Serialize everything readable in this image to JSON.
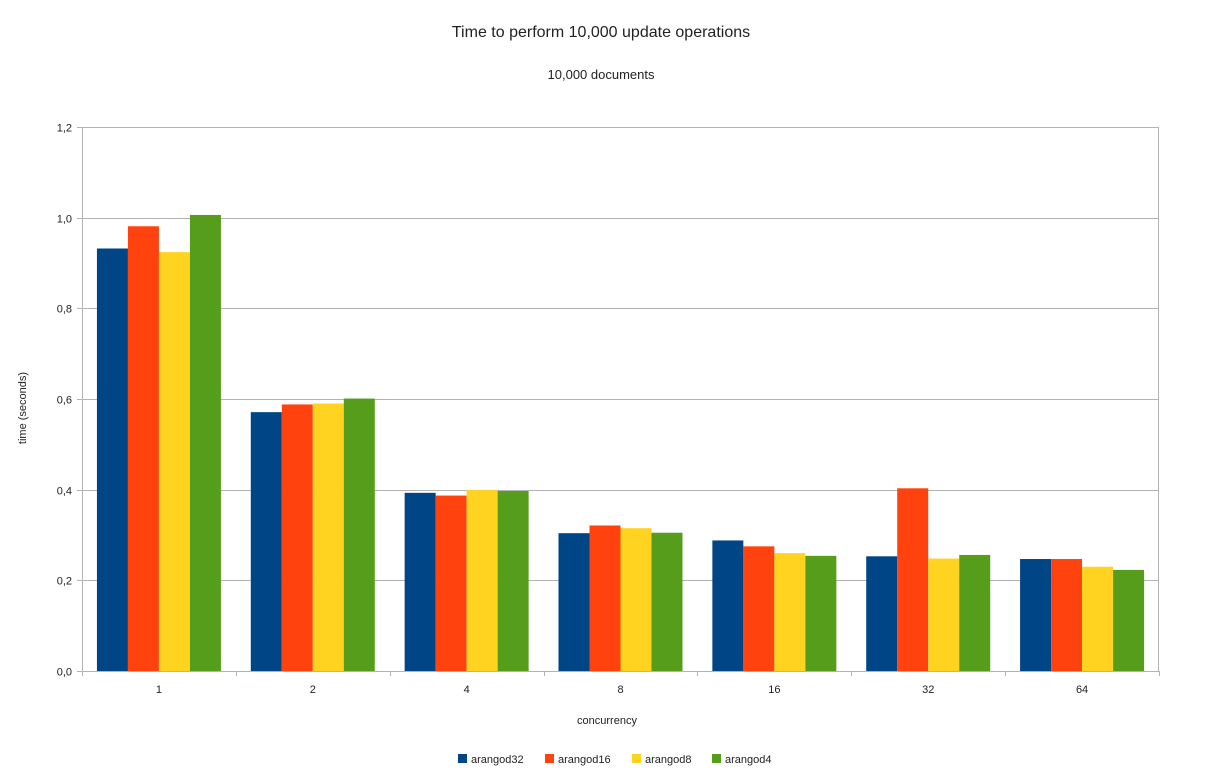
{
  "chart_data": {
    "type": "bar",
    "title": "Time to perform 10,000 update operations",
    "subtitle": "10,000 documents",
    "xlabel": "concurrency",
    "ylabel": "time (seconds)",
    "categories": [
      "1",
      "2",
      "4",
      "8",
      "16",
      "32",
      "64"
    ],
    "ylim": [
      0,
      1.2
    ],
    "yticks": [
      "0,0",
      "0,2",
      "0,4",
      "0,6",
      "0,8",
      "1,0",
      "1,2"
    ],
    "grid": true,
    "legend_position": "bottom",
    "series": [
      {
        "name": "arangod32",
        "color": "#004586",
        "values": [
          0.932,
          0.571,
          0.393,
          0.304,
          0.288,
          0.253,
          0.247
        ]
      },
      {
        "name": "arangod16",
        "color": "#ff420e",
        "values": [
          0.981,
          0.588,
          0.387,
          0.321,
          0.275,
          0.403,
          0.247
        ]
      },
      {
        "name": "arangod8",
        "color": "#ffd320",
        "values": [
          0.924,
          0.59,
          0.399,
          0.315,
          0.26,
          0.248,
          0.23
        ]
      },
      {
        "name": "arangod4",
        "color": "#579d1c",
        "values": [
          1.006,
          0.601,
          0.397,
          0.305,
          0.254,
          0.256,
          0.223
        ]
      }
    ]
  }
}
